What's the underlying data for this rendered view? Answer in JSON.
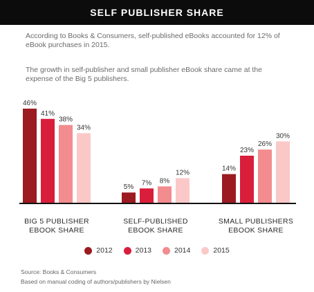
{
  "header": {
    "title": "SELF PUBLISHER SHARE"
  },
  "description": {
    "p1": "According to Books & Consumers, self-published eBooks accounted for 12% of eBook purchases in 2015.",
    "p2": "The growth in self-publisher and small publisher eBook share came at the expense of the Big 5 publishers."
  },
  "chart_data": {
    "type": "bar",
    "categories": [
      "BIG 5 PUBLISHER\nEBOOK SHARE",
      "SELF-PUBLISHED\nEBOOK SHARE",
      "SMALL PUBLISHERS\nEBOOK SHARE"
    ],
    "series": [
      {
        "name": "2012",
        "color": "#9b1b20",
        "values": [
          46,
          5,
          14
        ]
      },
      {
        "name": "2013",
        "color": "#d81e3b",
        "values": [
          41,
          7,
          23
        ]
      },
      {
        "name": "2014",
        "color": "#f28c8e",
        "values": [
          38,
          8,
          26
        ]
      },
      {
        "name": "2015",
        "color": "#fbc8c8",
        "values": [
          34,
          12,
          30
        ]
      }
    ],
    "value_suffix": "%",
    "ylim": [
      0,
      46
    ],
    "grid": false,
    "legend_position": "bottom"
  },
  "source": {
    "line1": "Source: Books & Consumers",
    "line2": "Based on manual coding of authors/publishers by Nielsen"
  }
}
